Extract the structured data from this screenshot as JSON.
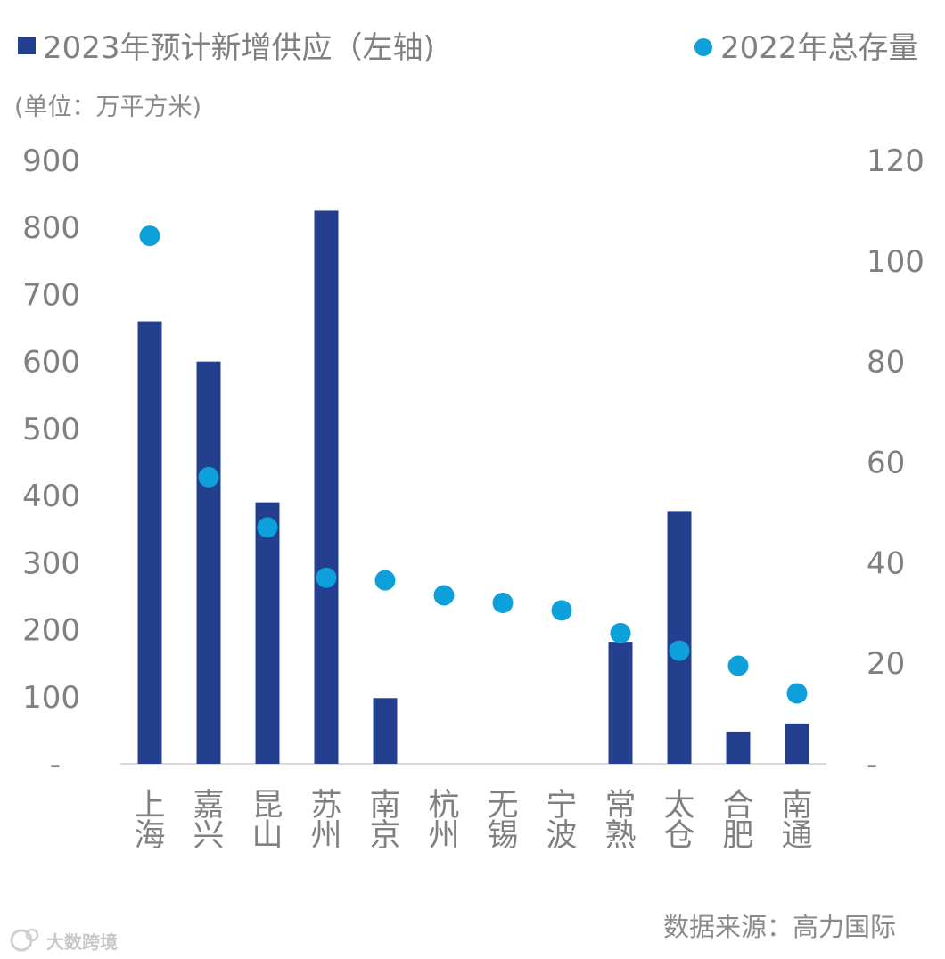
{
  "chart_data": {
    "type": "bar",
    "categories": [
      "上海",
      "嘉兴",
      "昆山",
      "苏州",
      "南京",
      "杭州",
      "无锡",
      "宁波",
      "常熟",
      "太仓",
      "合肥",
      "南通"
    ],
    "series": [
      {
        "name": "2023年预计新增供应（左轴)",
        "type": "bar",
        "axis": "left",
        "color": "#253f8f",
        "values": [
          660,
          600,
          390,
          825,
          98,
          0,
          0,
          0,
          182,
          377,
          48,
          60
        ]
      },
      {
        "name": "2022年总存量",
        "type": "scatter",
        "axis": "right",
        "color": "#0ea0da",
        "values": [
          105,
          57,
          47,
          37,
          36.5,
          33.5,
          32,
          30.5,
          26,
          22.5,
          19.5,
          14
        ]
      }
    ],
    "unit": "(单位：万平方米)",
    "left_axis": {
      "min": 0,
      "max": 900,
      "ticks": [
        {
          "value": 900,
          "label": "900"
        },
        {
          "value": 800,
          "label": "800"
        },
        {
          "value": 700,
          "label": "700"
        },
        {
          "value": 600,
          "label": "600"
        },
        {
          "value": 500,
          "label": "500"
        },
        {
          "value": 400,
          "label": "400"
        },
        {
          "value": 300,
          "label": "300"
        },
        {
          "value": 200,
          "label": "200"
        },
        {
          "value": 100,
          "label": "100"
        },
        {
          "value": 0,
          "label": "-"
        }
      ]
    },
    "right_axis": {
      "min": 0,
      "max": 120,
      "ticks": [
        {
          "value": 120,
          "label": "120"
        },
        {
          "value": 100,
          "label": "100"
        },
        {
          "value": 80,
          "label": "80"
        },
        {
          "value": 60,
          "label": "60"
        },
        {
          "value": 40,
          "label": "40"
        },
        {
          "value": 20,
          "label": "20"
        },
        {
          "value": 0,
          "label": "-"
        }
      ]
    },
    "legend_position": "top",
    "grid": false
  },
  "source": "数据来源：高力国际",
  "watermark": "大数跨境"
}
